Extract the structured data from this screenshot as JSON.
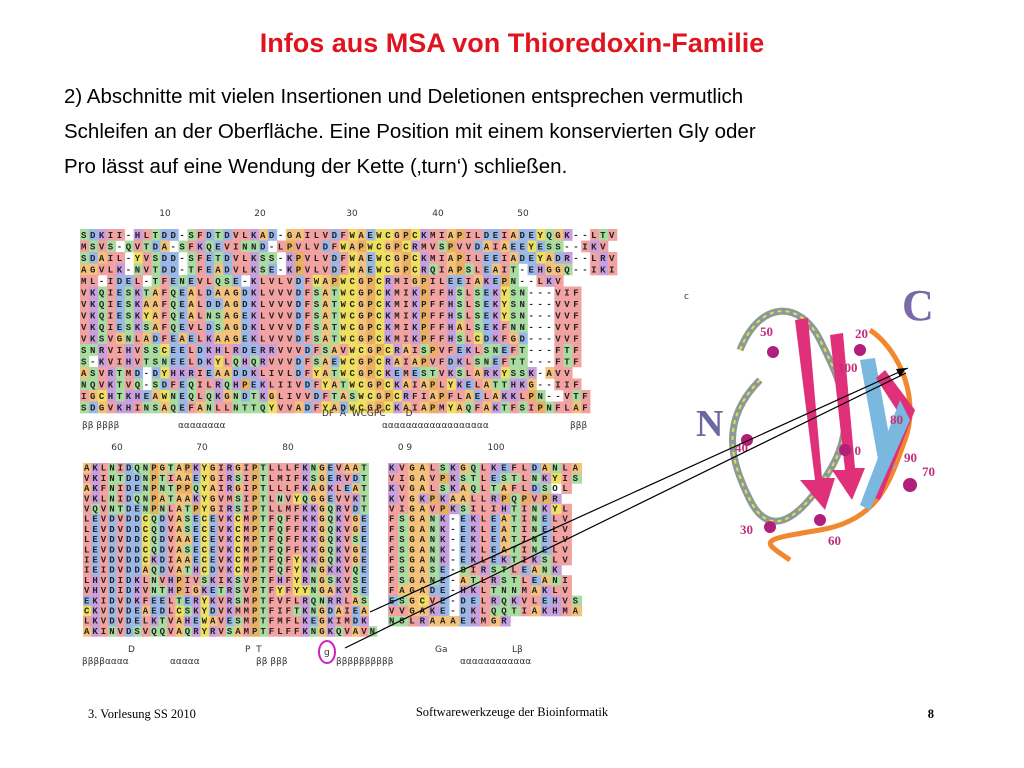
{
  "header": {
    "title": "Infos aus MSA von Thioredoxin-Familie"
  },
  "body": {
    "lines": [
      "2) Abschnitte mit vielen Insertionen und Deletionen entsprechen vermutlich",
      "Schleifen an der Oberfläche. Eine Position mit einem konservierten Gly oder",
      "Pro lässt auf eine Wendung der Kette (‚turn‘) schließen."
    ]
  },
  "alignment": {
    "top": {
      "ruler": [
        "10",
        "20",
        "30",
        "40",
        "50"
      ],
      "rows": [
        "SDKII-HLTDD-SFDTDVLKAD-GAILVDFWAEWCGPCKMIAPILDEIADEYQGK--LTV",
        "MSVS-QVTDA-SFKQEVINND-LPVLVDFWAPWCGPCRMVSPVVDAIAEEYESS--IKV",
        "SDAIL-YVSDD-SFETDVLKSS-KPVLVDFWAEWCGPCKMIAPILEEIADEYADR--LRV",
        "AGVLK-NVTDD-TFEADVLKSE-KPVLVDFWAEWCGPCRQIAPSLEAIT-EHGGQ--IKI",
        "ML-IDEL-TFENEVLQSE-KLVLVDFWAPWCGPCRMIGPILEEIAKEPN--LKV",
        "VKQIESKTAFQEALDAAGDKLVVVDFSATWCGPCKMIKPFFHSLSEKYSN---VIF",
        "VKQIESKAAFQEALDDAGDKLVVVDFSATWCGPCKMIKPFFHSLSEKYSN---VVF",
        "VKQIESKYAFQEALNSAGEKLVVVDFSATWCGPCKMIKPFFHSLSEKYSN---VVF",
        "VKQIESKSAFQEVLDSAGDKLVVVDFSATWCGPCKMIKPFFHALSEKFNN---VVF",
        "VKSVGNLADFEAELKAAGEKLVVVDFSATWCGPCKMIKPFFHSLCDKFGD---VVF",
        "SNRVIHVSSCEELDKHLRDERRVVVDFSAVWCGPCRAISPVFEKLSNEFT---FTF",
        "S-KVIHVTSNEELDKYLQHQRVVVDFSAEWCGPCRAIAPVFDKLSNEFTT---FTF",
        "ASVRTMD-DYHKRIEAADDKLIVLDFYATWCGPCKEMESTVKSLARKYSSK-AVV",
        "NQVKTVQ-SDFEQILRQHPEKLIIVDFYATWCGPCKAIAPLYKELATTHKG--IIF",
        "IGCHTKHEAWNEQLQKGNDTKGLIVVDFTASWCGPCRFIAPFLAELAKKLPN--VTF",
        "SDGVKHINSAQEFANLLNTTQYVVADFYADWCGPCKAIAPMYAQFAKTFSIPNFLAF"
      ],
      "motif": "DF  A  WCGPC       D",
      "structure": [
        "ββ ββββ",
        "αααααααα",
        "αααααααααααααααααα",
        "βββ"
      ]
    },
    "bottom": {
      "ruler": [
        "60",
        "70",
        "80",
        "0 9",
        "100"
      ],
      "rows_left": [
        "AKLNIDQNPGTAPKYGIRGIPTLLLFKNGEVAAT",
        "VKINTDDNPTIAAEYGIRSIPTLMIFKSGERVDT",
        "AKFNIDENPNTPPQYAIRGIPTLLLFKAGKLEAT",
        "VKLNIDQNPATAAKYGVMSIPTLNVYQGGEVVKT",
        "VQVNTDENPNLATPYGIRSIPTLLMFKKGQRVDT",
        "LEVDVDDCQDVASECEVKCMPTFQFFKKGQKVGE",
        "LEVDVDDCQDVASECEVKCMPTFQFFKKGQKVGE",
        "LEVDVDDCQDVAAECEVKCMPTFQFFKKGQKVSE",
        "LEVDVDDCQDVASECEVKCMPTFQFFKKGQKVGE",
        "IEVDVDDCKDIAAECEVKCMPTFQFYKKGQKVGE",
        "IEIDVDDAQDVATHCDVKCMPTFQFYKNGKKVQE",
        "LHVDIDKLNVHPIVSKIKSVPTFHFYRNGSKVSE",
        "VHVDIDKVNTHPIGKETRSVPTFYFYYNGAKVSE",
        "EKIDVDKFEELTERYKVRSMPTFVFLRQNRRLAS",
        "CKVDVDEAEDLCSKYDVKMMPTFIFTKNGDAIEA",
        "LKVDVDELKTVAHEWAVESMPTFMFLKEGKIMDK",
        "AKINVDSVQQVAQRYRVSAMPTFLFFKNGKQVAVN"
      ],
      "rows_right": [
        "KVGALSKGQLKEFLDANLA",
        "VIGAVPKSTLESTLNKYIS",
        "KVGALSKAQLTAFLDSOL",
        "KVGKPKAALLRPQPVPR",
        "VIGAVPKSILIHTINKYL",
        "FSGANK-EKLEATINELV",
        "FSGANK-EKLEATINELV",
        "FSGANK-EKLEATINELV",
        "FSGANK-EKLEATINELV",
        "FSGANK-EKLEKTIKSLV",
        "FSGASE-SIRSTLEANK",
        "FSGANE-ATLRSTLEANI",
        "FAGADE-HKLTNNMAKLV",
        "ESGCVE-DELRQKVLEHVS",
        "VVGAKE-DKLQQTIAKHMA",
        "NSLRAAAEKMGR",
        ""
      ],
      "motif_left": [
        "D",
        "P  T"
      ],
      "turn": "g",
      "motif_right": [
        "Ga",
        "Lβ"
      ],
      "structure": [
        "ββββαααα",
        "ααααα",
        "ββ βββ",
        "ββββββββββ",
        "αααααααααααα"
      ]
    }
  },
  "structure_labels": {
    "c_small": "c",
    "terminus": [
      "N",
      "C"
    ],
    "residues": [
      "50",
      "20",
      "100",
      "80",
      "40",
      "10",
      "90",
      "70",
      "30",
      "60"
    ]
  },
  "footer": {
    "left": "3. Vorlesung SS 2010",
    "center": "Softwarewerkzeuge der Bioinformatik",
    "page": "8"
  }
}
